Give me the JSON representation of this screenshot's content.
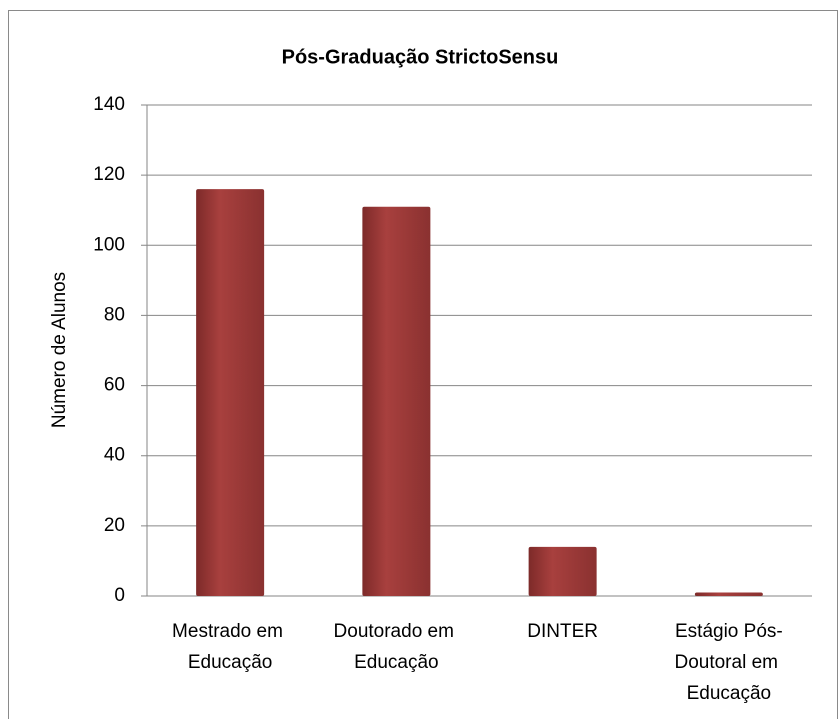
{
  "chart_data": {
    "type": "bar",
    "title": "Pós-Graduação StrictoSensu",
    "y_label": "Número de Alunos",
    "categories": [
      "Mestrado em Educação",
      "Doutorado em Educação",
      "DINTER",
      "Estágio Pós-Doutoral em Educação"
    ],
    "values": [
      116,
      111,
      14,
      1
    ],
    "color": "#9b3b39",
    "ylim": [
      0,
      140
    ],
    "yticks": [
      0,
      20,
      40,
      60,
      80,
      100,
      120,
      140
    ],
    "grid": true
  }
}
